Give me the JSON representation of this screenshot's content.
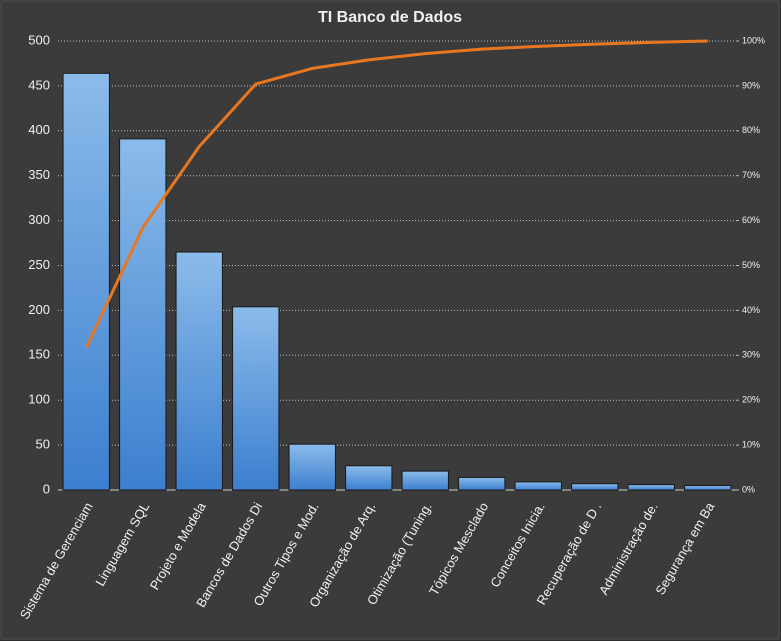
{
  "chart_data": {
    "type": "bar",
    "title": "TI Banco de Dados",
    "categories": [
      "Sistema de Gerenciam",
      "Linguagem SQL",
      "Projeto e Modela",
      "Bancos de Dados Di",
      "Outros Tipos e Mod.",
      "Organização de Arq.",
      "Otimização (Tuning.",
      "Tópicos Mesclado",
      "Conceitos Inicia.",
      "Recuperação de D .",
      "Administração de.",
      "Segurança em Ba"
    ],
    "series": [
      {
        "type": "bar",
        "color": "#4a8ed8",
        "values": [
          464,
          391,
          265,
          204,
          51,
          27,
          21,
          14,
          9,
          7,
          6,
          5
        ]
      },
      {
        "type": "line",
        "axis": "y2",
        "color": "#e87722",
        "values": [
          31.7,
          58.4,
          76.5,
          90.4,
          93.9,
          95.8,
          97.2,
          98.2,
          98.8,
          99.3,
          99.7,
          100
        ]
      }
    ],
    "ylim": [
      0,
      500
    ],
    "yticks": [
      0,
      50,
      100,
      150,
      200,
      250,
      300,
      350,
      400,
      450,
      500
    ],
    "y2lim": [
      0,
      100
    ],
    "y2ticks": [
      {
        "value": 0,
        "label": "0%"
      },
      {
        "value": 10,
        "label": "10%"
      },
      {
        "value": 20,
        "label": "20%"
      },
      {
        "value": 30,
        "label": "30%"
      },
      {
        "value": 40,
        "label": "40%"
      },
      {
        "value": 50,
        "label": "50%"
      },
      {
        "value": 60,
        "label": "60%"
      },
      {
        "value": 70,
        "label": "70%"
      },
      {
        "value": 80,
        "label": "80%"
      },
      {
        "value": 90,
        "label": "90%"
      },
      {
        "value": 100,
        "label": "100%"
      }
    ],
    "grid": true
  }
}
